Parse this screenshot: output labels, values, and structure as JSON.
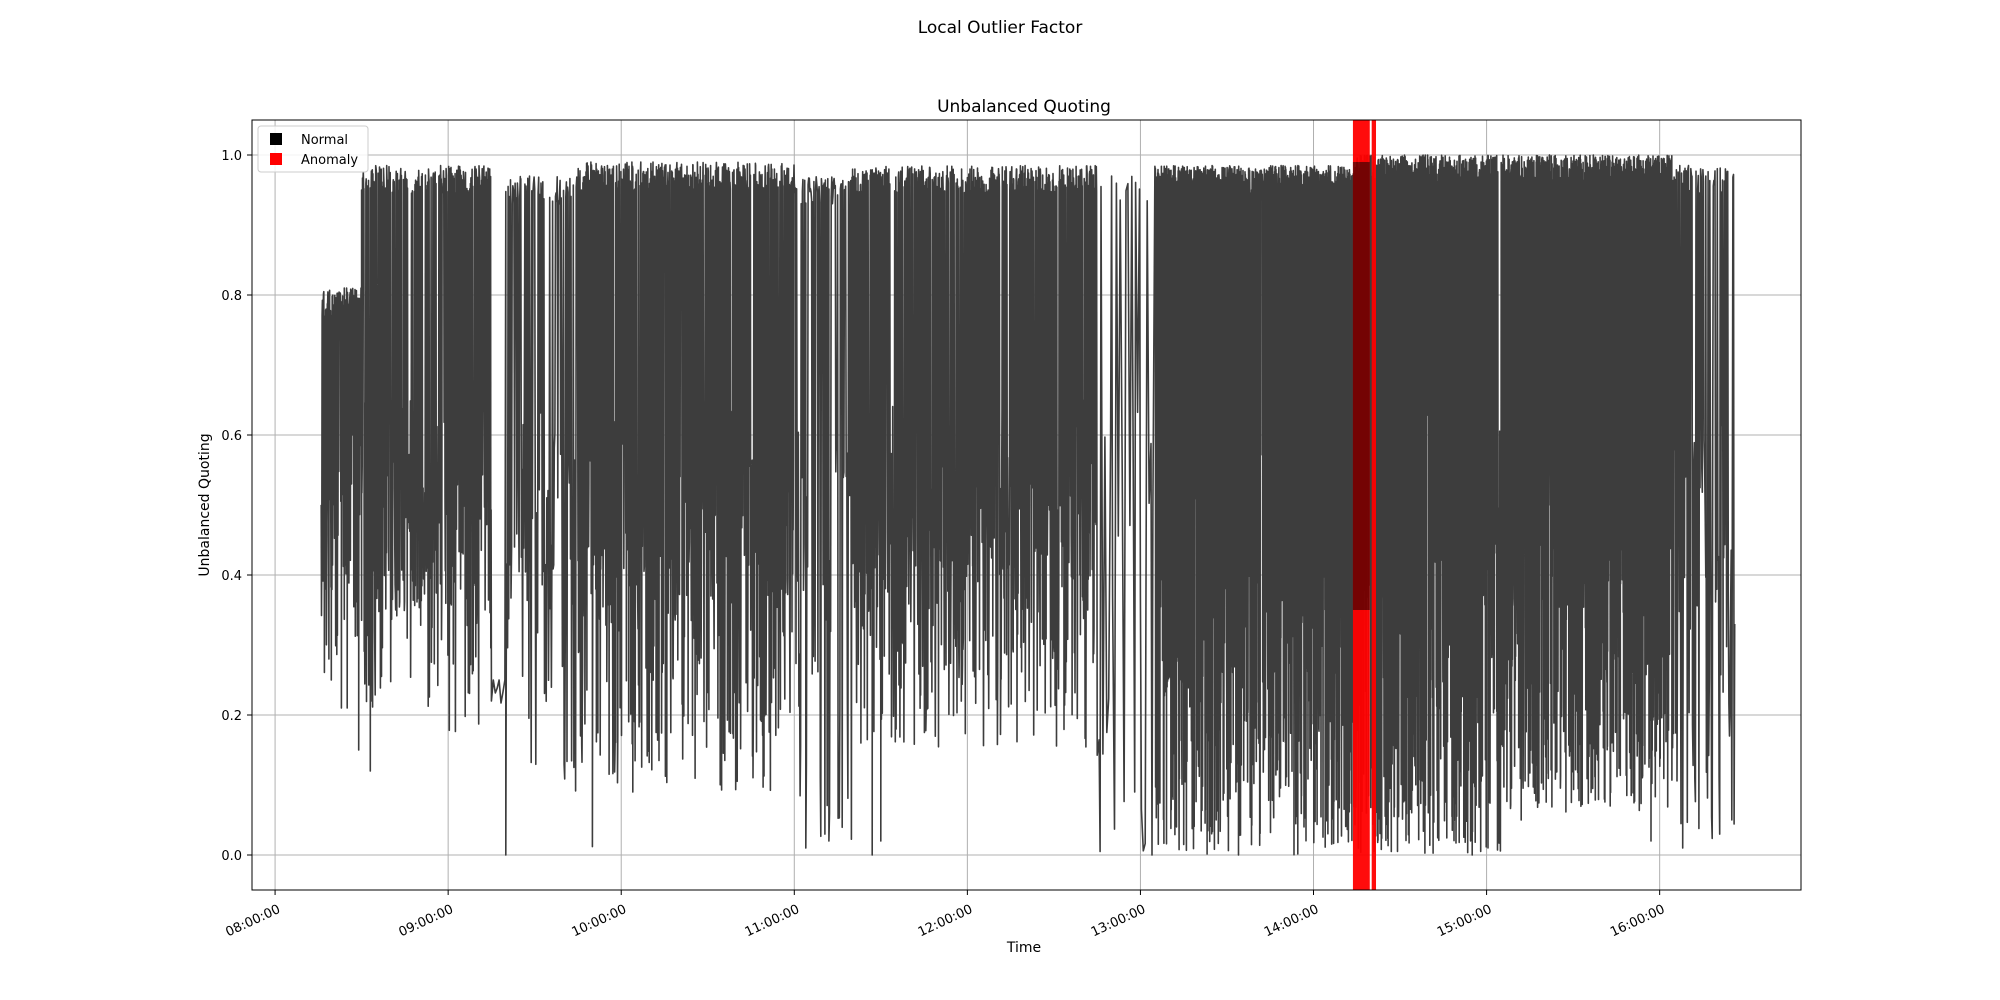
{
  "figure": {
    "suptitle": "Local Outlier Factor"
  },
  "chart_data": {
    "type": "line",
    "title": "Unbalanced Quoting",
    "xlabel": "Time",
    "ylabel": "Unbalanced Quoting",
    "xlim": [
      "07:52:00",
      "16:49:00"
    ],
    "ylim": [
      -0.05,
      1.05
    ],
    "x_ticks": [
      "08:00:00",
      "09:00:00",
      "10:00:00",
      "11:00:00",
      "12:00:00",
      "13:00:00",
      "14:00:00",
      "15:00:00",
      "16:00:00"
    ],
    "y_ticks": [
      "0.0",
      "0.2",
      "0.4",
      "0.6",
      "0.8",
      "1.0"
    ],
    "grid": true,
    "legend": {
      "placement": "top-left",
      "entries": [
        {
          "label": "Normal",
          "color": "#000000"
        },
        {
          "label": "Anomaly",
          "color": "#ff0000"
        }
      ]
    },
    "series": [
      {
        "name": "Normal",
        "color": "#3d3d3d",
        "x_start": "08:16:00",
        "x_end": "16:26:00",
        "segments": [
          {
            "from": "08:16:00",
            "to": "08:30:00",
            "low": 0.21,
            "high": 0.81,
            "density": "high"
          },
          {
            "from": "08:30:00",
            "to": "09:00:00",
            "low": 0.21,
            "high": 0.985,
            "density": "high"
          },
          {
            "from": "09:00:00",
            "to": "09:15:00",
            "low": 0.17,
            "high": 0.985,
            "density": "high"
          },
          {
            "from": "09:15:00",
            "to": "09:20:00",
            "low": 0.0,
            "high": 0.25,
            "density": "sparse"
          },
          {
            "from": "09:20:00",
            "to": "09:45:00",
            "low": 0.09,
            "high": 0.97,
            "density": "medium"
          },
          {
            "from": "09:45:00",
            "to": "11:00:00",
            "low": 0.09,
            "high": 0.99,
            "density": "high"
          },
          {
            "from": "11:00:00",
            "to": "11:20:00",
            "low": 0.02,
            "high": 0.97,
            "density": "medium"
          },
          {
            "from": "11:20:00",
            "to": "12:45:00",
            "low": 0.15,
            "high": 0.985,
            "density": "high"
          },
          {
            "from": "12:45:00",
            "to": "13:05:00",
            "low": 0.0,
            "high": 0.97,
            "density": "sparse"
          },
          {
            "from": "13:05:00",
            "to": "14:15:00",
            "low": 0.0,
            "high": 0.985,
            "density": "very-high"
          },
          {
            "from": "14:15:00",
            "to": "15:05:00",
            "low": 0.0,
            "high": 1.0,
            "density": "very-high"
          },
          {
            "from": "15:05:00",
            "to": "16:05:00",
            "low": 0.06,
            "high": 1.0,
            "density": "very-high"
          },
          {
            "from": "16:05:00",
            "to": "16:26:00",
            "low": 0.01,
            "high": 0.985,
            "density": "medium"
          }
        ],
        "points": [
          [
            "08:16:00",
            0.5
          ],
          [
            "08:16:30",
            0.58
          ],
          [
            "08:17:00",
            0.77
          ],
          [
            "08:17:30",
            0.38
          ],
          [
            "08:18:00",
            0.7
          ],
          [
            "08:18:40",
            0.28
          ],
          [
            "08:19:00",
            0.74
          ],
          [
            "08:19:30",
            0.25
          ],
          [
            "08:20:00",
            0.8
          ],
          [
            "08:21:00",
            0.43
          ],
          [
            "08:22:00",
            0.64
          ],
          [
            "08:23:00",
            0.21
          ],
          [
            "08:24:00",
            0.81
          ],
          [
            "08:25:00",
            0.21
          ],
          [
            "08:27:00",
            0.6
          ],
          [
            "08:29:00",
            0.15
          ],
          [
            "08:30:00",
            0.95
          ],
          [
            "08:31:00",
            0.4
          ],
          [
            "08:33:00",
            0.12
          ],
          [
            "08:34:00",
            0.9
          ],
          [
            "09:15:00",
            0.22
          ],
          [
            "09:20:00",
            0.0
          ],
          [
            "09:23:00",
            0.44
          ],
          [
            "09:25:00",
            0.95
          ],
          [
            "09:50:00",
            0.012
          ],
          [
            "10:04:00",
            0.09
          ],
          [
            "11:04:00",
            0.01
          ],
          [
            "11:12:00",
            0.02
          ],
          [
            "11:27:00",
            0.0
          ],
          [
            "11:30:00",
            0.02
          ],
          [
            "11:58:00",
            0.98
          ],
          [
            "12:42:00",
            0.46
          ],
          [
            "12:46:00",
            0.005
          ],
          [
            "12:50:00",
            0.97
          ],
          [
            "12:58:00",
            0.09
          ],
          [
            "13:00:00",
            0.37
          ],
          [
            "13:04:00",
            0.0
          ],
          [
            "13:06:00",
            0.53
          ],
          [
            "13:15:00",
            0.015
          ],
          [
            "13:34:00",
            0.0
          ],
          [
            "14:15:00",
            0.99
          ],
          [
            "14:48:00",
            0.055
          ],
          [
            "14:55:00",
            0.0
          ],
          [
            "15:12:00",
            0.05
          ],
          [
            "15:37:00",
            1.0
          ],
          [
            "15:57:00",
            0.02
          ],
          [
            "16:08:00",
            0.01
          ],
          [
            "16:16:00",
            0.97
          ],
          [
            "16:22:00",
            0.6
          ],
          [
            "16:26:00",
            0.33
          ]
        ]
      },
      {
        "name": "Anomaly",
        "color": "#ff0000",
        "type": "vertical-bands",
        "bands": [
          {
            "from": "14:13:40",
            "to": "14:19:30"
          },
          {
            "from": "14:20:10",
            "to": "14:21:40"
          }
        ],
        "inside_band_low": 0.35,
        "inside_band_high": 0.99
      }
    ]
  }
}
